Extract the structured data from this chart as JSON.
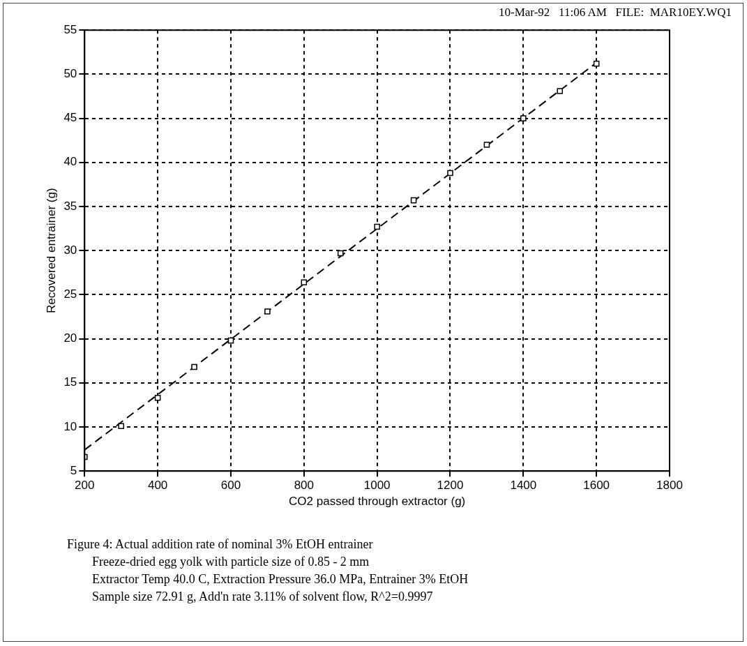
{
  "chart_data": {
    "type": "scatter",
    "xlabel": "CO2 passed through extractor (g)",
    "ylabel": "Recovered entrainer (g)",
    "xlim": [
      200,
      1800
    ],
    "xticks": [
      200,
      400,
      600,
      800,
      1000,
      1200,
      1400,
      1600,
      1800
    ],
    "ylim": [
      5,
      55
    ],
    "yticks": [
      5,
      10,
      15,
      20,
      25,
      30,
      35,
      40,
      45,
      50,
      55
    ],
    "grid": true,
    "series": [
      {
        "marker": "square",
        "color": "#000000",
        "x": [
          200,
          300,
          400,
          500,
          600,
          700,
          800,
          900,
          1000,
          1100,
          1200,
          1300,
          1400,
          1500,
          1600
        ],
        "values": [
          6.6,
          10.1,
          13.3,
          16.8,
          19.8,
          23.1,
          26.4,
          29.7,
          32.7,
          35.7,
          38.8,
          42.0,
          45.0,
          48.1,
          51.2
        ]
      },
      {
        "type": "line",
        "marker": "none",
        "line_style": "dashed",
        "color": "#000000",
        "x": [
          200,
          1600
        ],
        "values": [
          7.4,
          51.3
        ]
      }
    ],
    "annotations": [
      "10-Mar-92   11:06 AM   FILE:  MAR10EY.WQ1",
      "Figure 4: Actual addition rate of nominal 3% EtOH entrainer",
      "Freeze-dried egg yolk with particle size of 0.85 - 2 mm",
      "Extractor Temp 40.0 C, Extraction Pressure 36.0 MPa, Entrainer 3% EtOH",
      "Sample size 72.91 g, Add'n rate 3.11% of solvent flow, R^2=0.9997"
    ]
  }
}
